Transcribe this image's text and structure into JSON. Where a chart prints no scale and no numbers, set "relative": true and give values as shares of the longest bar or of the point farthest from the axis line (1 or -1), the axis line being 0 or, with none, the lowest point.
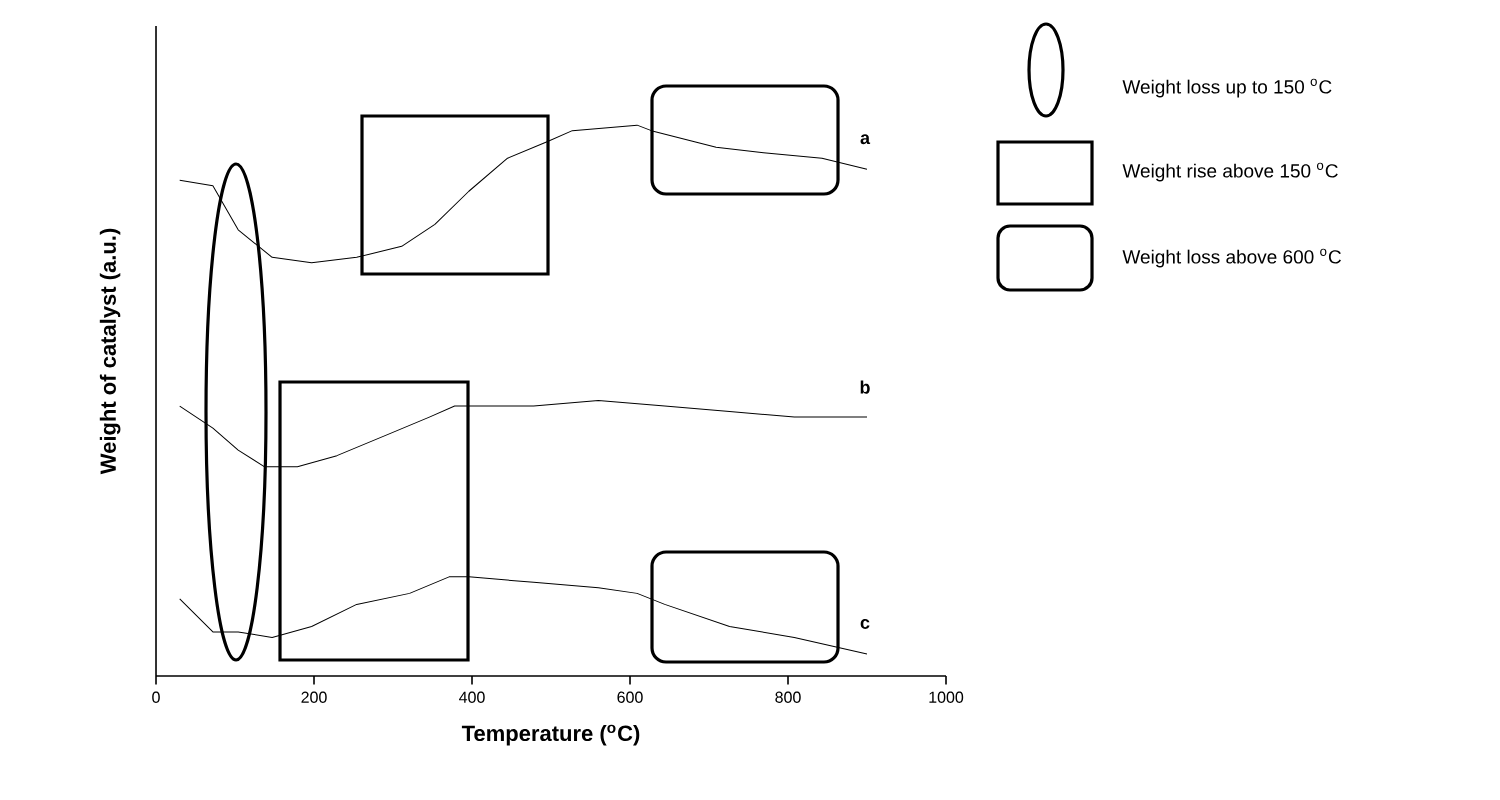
{
  "chart_data": {
    "type": "line",
    "relative": true,
    "xlabel": "Temperature ($^{o}$C)",
    "ylabel": "Weight of catalyst (a.u.)",
    "xlim": [
      0,
      1000
    ],
    "xticks": [
      0,
      200,
      400,
      600,
      800,
      1000
    ],
    "tick_labels": "x",
    "series": [
      {
        "name": "a",
        "color": "#000000",
        "x": [
          30,
          72,
          104,
          147,
          197,
          254,
          311,
          353,
          396,
          445,
          495,
          527,
          609,
          627,
          709,
          769,
          843,
          900
        ],
        "values": [
          0.9,
          0.89,
          0.81,
          0.76,
          0.75,
          0.76,
          0.78,
          0.82,
          0.88,
          0.94,
          0.97,
          0.99,
          1.0,
          0.99,
          0.96,
          0.95,
          0.94,
          0.92
        ]
      },
      {
        "name": "b",
        "color": "#000000",
        "x": [
          30,
          72,
          104,
          137,
          179,
          229,
          296,
          346,
          378,
          396,
          478,
          560,
          644,
          726,
          808,
          900
        ],
        "values": [
          0.49,
          0.45,
          0.41,
          0.38,
          0.38,
          0.4,
          0.44,
          0.47,
          0.49,
          0.49,
          0.49,
          0.5,
          0.49,
          0.48,
          0.47,
          0.47
        ]
      },
      {
        "name": "c",
        "color": "#000000",
        "x": [
          30,
          72,
          104,
          147,
          197,
          254,
          321,
          371,
          396,
          478,
          560,
          609,
          644,
          726,
          808,
          900
        ],
        "values": [
          0.14,
          0.08,
          0.08,
          0.07,
          0.09,
          0.13,
          0.15,
          0.18,
          0.18,
          0.17,
          0.16,
          0.15,
          0.13,
          0.09,
          0.07,
          0.04
        ]
      }
    ],
    "annotations": [
      "Weight loss up to 150 $^{o}$C",
      "Weight rise above 150 $^{o}$C",
      "Weight loss above 600 $^{o}$C"
    ]
  }
}
